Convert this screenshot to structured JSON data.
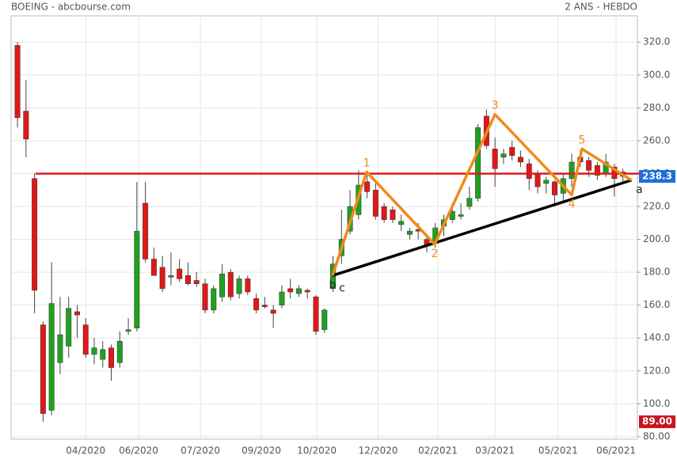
{
  "chart_data": {
    "type": "candlestick",
    "title": "BOEING - abcbourse.com",
    "subtitle": "2 ANS - HEBDO",
    "up_color": "#20a020",
    "down_color": "#e01818",
    "open": [
      318,
      278,
      237,
      148,
      96,
      125,
      135,
      156,
      148,
      130,
      127,
      134,
      125,
      144,
      146,
      222,
      188,
      183,
      177,
      182,
      178,
      175,
      173,
      157,
      165,
      180,
      167,
      176,
      164,
      160,
      157,
      160,
      170,
      167,
      169,
      165,
      145,
      170,
      190,
      205,
      215,
      235,
      230,
      220,
      218,
      209,
      203,
      206,
      200,
      198,
      208,
      212,
      214,
      220,
      225,
      275,
      255,
      250,
      256,
      250,
      246,
      240,
      234,
      235,
      228,
      237,
      250,
      248,
      245,
      240,
      244,
      241
    ],
    "high": [
      320,
      297,
      240,
      150,
      186,
      165,
      165,
      160,
      152,
      140,
      138,
      136,
      144,
      152,
      235,
      235,
      195,
      190,
      192,
      188,
      186,
      180,
      176,
      172,
      185,
      182,
      178,
      178,
      167,
      165,
      160,
      172,
      176,
      172,
      170,
      166,
      158,
      190,
      218,
      230,
      242,
      240,
      235,
      222,
      220,
      215,
      207,
      210,
      202,
      210,
      215,
      222,
      222,
      232,
      270,
      279,
      262,
      255,
      260,
      254,
      249,
      242,
      238,
      236,
      240,
      252,
      254,
      250,
      247,
      252,
      246,
      243
    ],
    "low": [
      268,
      250,
      155,
      89,
      93,
      118,
      128,
      140,
      128,
      124,
      122,
      114,
      122,
      142,
      144,
      186,
      178,
      168,
      172,
      174,
      172,
      171,
      155,
      155,
      162,
      163,
      164,
      166,
      155,
      158,
      146,
      158,
      164,
      165,
      164,
      142,
      143,
      168,
      185,
      203,
      212,
      225,
      212,
      210,
      210,
      205,
      200,
      200,
      192,
      195,
      202,
      210,
      212,
      218,
      223,
      255,
      232,
      246,
      248,
      244,
      230,
      228,
      228,
      220,
      222,
      232,
      244,
      238,
      236,
      238,
      226,
      235
    ],
    "close": [
      274,
      261,
      169,
      94,
      161,
      142,
      158,
      154,
      130,
      134,
      133,
      122,
      138,
      145,
      205,
      188,
      178,
      170,
      178,
      176,
      173,
      173,
      157,
      170,
      179,
      165,
      176,
      168,
      157,
      159,
      155,
      168,
      168,
      170,
      168,
      144,
      157,
      185,
      200,
      220,
      233,
      229,
      214,
      212,
      212,
      211,
      205,
      205,
      196,
      207,
      212,
      217,
      215,
      225,
      268,
      257,
      243,
      252,
      251,
      247,
      237,
      232,
      236,
      227,
      237,
      247,
      247,
      242,
      239,
      247,
      237,
      238.3
    ],
    "xlim": [
      -0.75,
      72.7
    ],
    "xticks": [
      {
        "value": 8,
        "label": "04/2020"
      },
      {
        "value": 14.2,
        "label": "06/2020"
      },
      {
        "value": 21.45,
        "label": "07/2020"
      },
      {
        "value": 28.6,
        "label": "09/2020"
      },
      {
        "value": 35.1,
        "label": "10/2020"
      },
      {
        "value": 42.3,
        "label": "12/2020"
      },
      {
        "value": 49.3,
        "label": "02/2021"
      },
      {
        "value": 56,
        "label": "03/2021"
      },
      {
        "value": 63.4,
        "label": "05/2021"
      },
      {
        "value": 70.2,
        "label": "06/2021"
      }
    ],
    "ylim": [
      78.5,
      336
    ],
    "yticks": [
      {
        "value": 80,
        "label": "80.00"
      },
      {
        "value": 100,
        "label": "100.0"
      },
      {
        "value": 120,
        "label": "120.0"
      },
      {
        "value": 140,
        "label": "140.0"
      },
      {
        "value": 160,
        "label": "160.0"
      },
      {
        "value": 180,
        "label": "180.0"
      },
      {
        "value": 200,
        "label": "200.0"
      },
      {
        "value": 220,
        "label": "220.0"
      },
      {
        "value": 240,
        "label": "240.0"
      },
      {
        "value": 260,
        "label": "260.0"
      },
      {
        "value": 280,
        "label": "280.0"
      },
      {
        "value": 300,
        "label": "300.0"
      },
      {
        "value": 320,
        "label": "320.0"
      }
    ],
    "grid": true,
    "min_marker": {
      "value": 89,
      "label": "89.00"
    },
    "lines": [
      {
        "color": "#e01818",
        "width": 2.5,
        "points": [
          {
            "x": 2.1,
            "y": 240
          },
          {
            "x": 72.9,
            "y": 240
          }
        ]
      },
      {
        "color": "#000000",
        "width": 3.5,
        "points": [
          {
            "x": 36.95,
            "y": 178,
            "label": "c"
          },
          {
            "x": 72,
            "y": 236
          }
        ]
      },
      {
        "color": "#f08a1c",
        "width": 3.5,
        "points": [
          {
            "x": 36.95,
            "y": 178,
            "label": "b"
          },
          {
            "x": 40.95,
            "y": 241,
            "label": "1"
          },
          {
            "x": 48.93,
            "y": 197,
            "label": "2"
          },
          {
            "x": 56,
            "y": 276,
            "label": "3"
          },
          {
            "x": 65,
            "y": 227,
            "label": "4"
          },
          {
            "x": 66.2,
            "y": 255,
            "label": "5"
          },
          {
            "x": 72,
            "y": 236,
            "label": "a"
          }
        ]
      }
    ]
  }
}
